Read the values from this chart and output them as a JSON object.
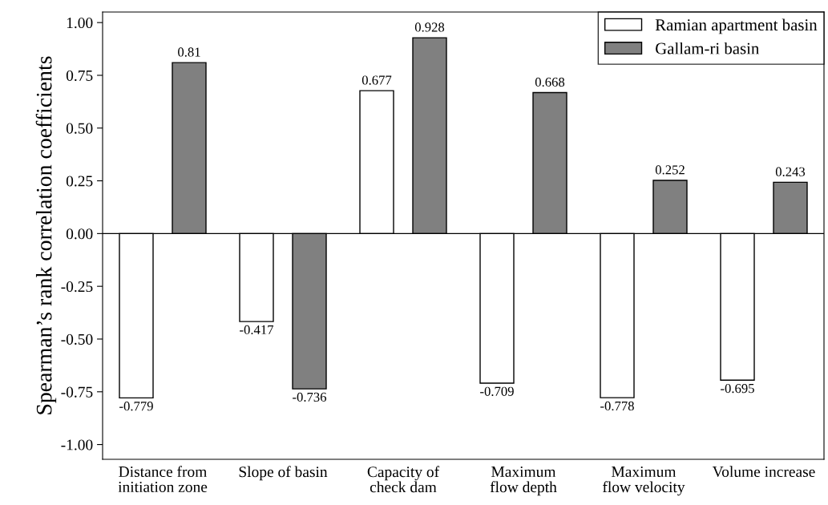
{
  "chart_data": {
    "type": "bar",
    "ylabel": "Spearman’s rank correlation coefficients",
    "categories": [
      "Distance from\ninitiation zone",
      "Slope of basin",
      "Capacity of\ncheck dam",
      "Maximum\nflow depth",
      "Maximum\nflow velocity",
      "Volume increase"
    ],
    "series": [
      {
        "name": "Ramian apartment basin",
        "color": "#ffffff",
        "values": [
          -0.779,
          -0.417,
          0.677,
          -0.709,
          -0.778,
          -0.695
        ]
      },
      {
        "name": "Gallam-ri basin",
        "color": "#808080",
        "values": [
          0.81,
          -0.736,
          0.928,
          0.668,
          0.252,
          0.243
        ]
      }
    ],
    "ylim": [
      -1.07,
      1.05
    ],
    "yticks": [
      {
        "value": -1.0,
        "label": "-1.00"
      },
      {
        "value": -0.75,
        "label": "-0.75"
      },
      {
        "value": -0.5,
        "label": "-0.50"
      },
      {
        "value": -0.25,
        "label": "-0.25"
      },
      {
        "value": 0,
        "label": "0.00"
      },
      {
        "value": 0.25,
        "label": "0.25"
      },
      {
        "value": 0.5,
        "label": "0.50"
      },
      {
        "value": 0.75,
        "label": "0.75"
      },
      {
        "value": 1.0,
        "label": "1.00"
      }
    ],
    "ref_lines": [
      {
        "axis": "y",
        "value": 0,
        "color": "#000000"
      }
    ],
    "data_labels": true,
    "legend": "top right",
    "grid": false
  }
}
